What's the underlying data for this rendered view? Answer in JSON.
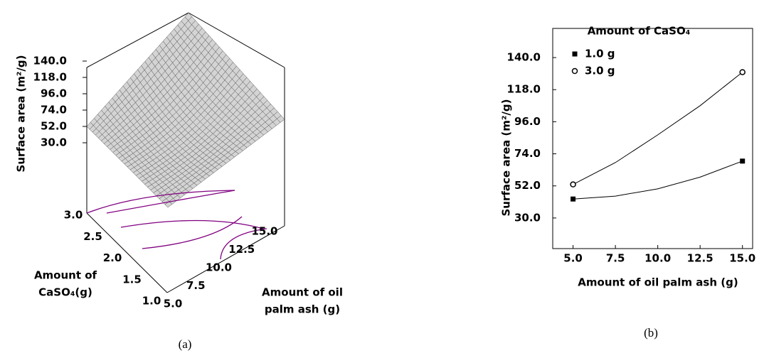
{
  "chart_data": [
    {
      "type": "surface3d",
      "caption": "(a)",
      "zlabel": "Surface area (m²/g)",
      "xlabel": [
        "Amount of oil",
        "palm ash (g)"
      ],
      "ylabel": [
        "Amount of",
        "CaSO₄(g)"
      ],
      "zlim": [
        30,
        140
      ],
      "xlim": [
        5,
        15
      ],
      "ylim": [
        1,
        3
      ],
      "zticks": [
        {
          "value": 140,
          "label": "140.0"
        },
        {
          "value": 118,
          "label": "118.0"
        },
        {
          "value": 96,
          "label": "96.0"
        },
        {
          "value": 74,
          "label": "74.0"
        },
        {
          "value": 52,
          "label": "52.0"
        },
        {
          "value": 30,
          "label": "30.0"
        }
      ],
      "xticks": [
        {
          "value": 5,
          "label": "5.0"
        },
        7.5,
        {
          "value": 10,
          "label": "10.0"
        },
        12.5,
        {
          "value": 15,
          "label": "15.0"
        }
      ],
      "yticks": [
        {
          "value": 1,
          "label": "1.0"
        },
        1.5,
        {
          "value": 2,
          "label": "2.0"
        },
        2.5,
        {
          "value": 3,
          "label": "3.0"
        }
      ],
      "surface_color": "#d4d4d4",
      "contour_color": "#800080"
    },
    {
      "type": "scatter",
      "caption": "(b)",
      "xlabel": "Amount of oil palm ash (g)",
      "ylabel": "Surface area (m²/g)",
      "legend_title": "Amount of CaSO₄",
      "legend": "top-left",
      "xlim": [
        3.8,
        15.6
      ],
      "ylim": [
        9,
        160
      ],
      "xticks": [
        {
          "value": 5,
          "label": "5.0"
        },
        7.5,
        {
          "value": 10,
          "label": "10.0"
        },
        12.5,
        {
          "value": 15,
          "label": "15.0"
        }
      ],
      "yticks": [
        {
          "value": 30,
          "label": "30.0"
        },
        {
          "value": 52,
          "label": "52.0"
        },
        {
          "value": 74,
          "label": "74.0"
        },
        {
          "value": 96,
          "label": "96.0"
        },
        {
          "value": 118,
          "label": "118.0"
        },
        {
          "value": 140,
          "label": "140.0"
        }
      ],
      "series": [
        {
          "name": "1.0 g",
          "marker": "square",
          "color": "#000000",
          "x": [
            5,
            15
          ],
          "values": [
            43,
            69
          ],
          "curve": {
            "x": [
              5,
              7.5,
              10,
              12.5,
              15
            ],
            "values": [
              43,
              45,
              50,
              58,
              69
            ]
          }
        },
        {
          "name": "3.0 g",
          "marker": "circle",
          "color": "#000000",
          "x": [
            5,
            15
          ],
          "values": [
            53,
            130
          ],
          "curve": {
            "x": [
              5,
              7.5,
              10,
              12.5,
              15
            ],
            "values": [
              53,
              68,
              87,
              107,
              130
            ]
          }
        }
      ]
    }
  ]
}
